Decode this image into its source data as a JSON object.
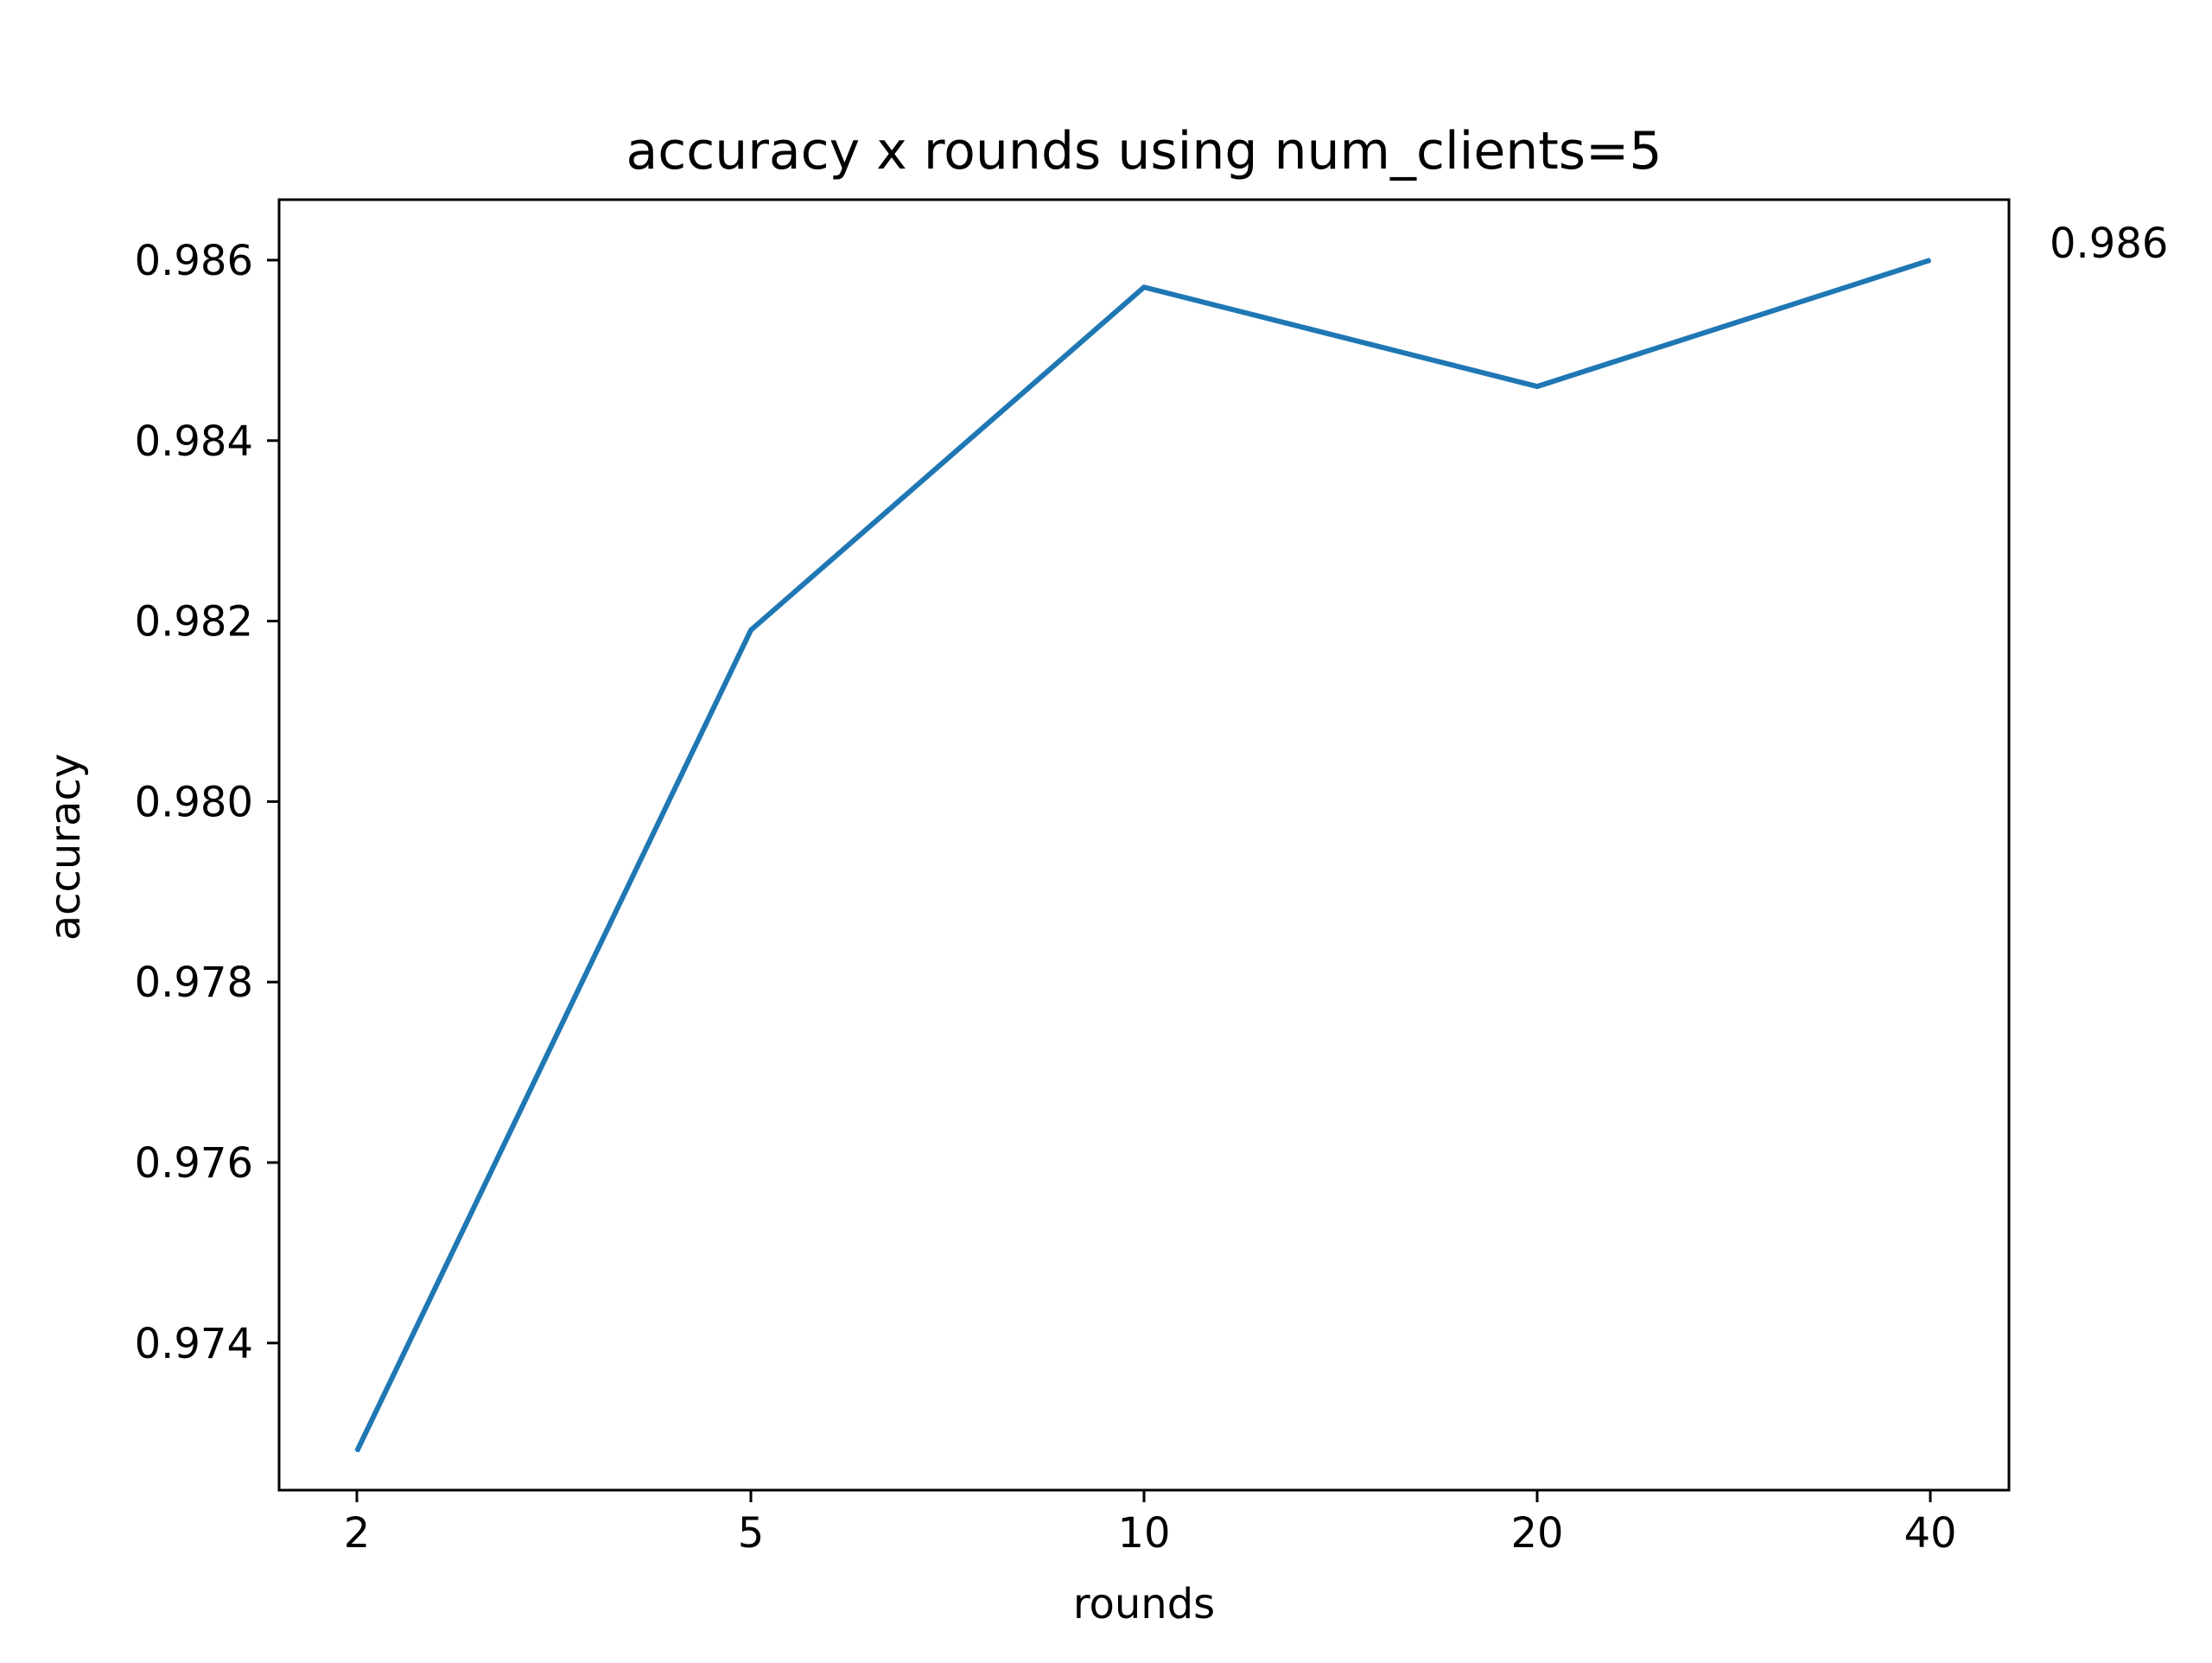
{
  "chart_data": {
    "type": "line",
    "title": "accuracy x rounds using num_clients=5",
    "xlabel": "rounds",
    "ylabel": "accuracy",
    "x_scale": "categorical",
    "categories": [
      "2",
      "5",
      "10",
      "20",
      "40"
    ],
    "series": [
      {
        "values": [
          0.9728,
          0.9819,
          0.9857,
          0.9846,
          0.986
        ],
        "color": "#1f77b4"
      }
    ],
    "ylim": [
      0.97237,
      0.98667
    ],
    "y_ticks": [
      "0.974",
      "0.976",
      "0.978",
      "0.980",
      "0.982",
      "0.984",
      "0.986"
    ],
    "annotation": {
      "text": "0.986",
      "attached_to": "last-point"
    },
    "grid": false,
    "legend": "none"
  }
}
